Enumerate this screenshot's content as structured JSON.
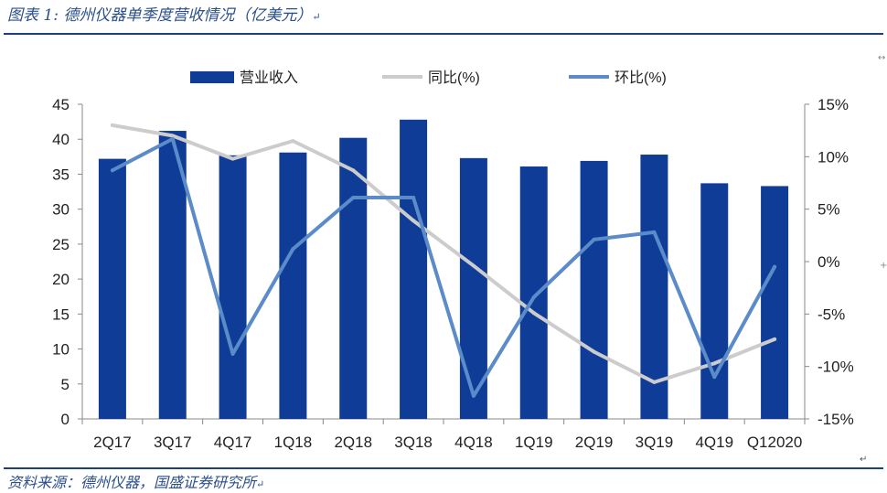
{
  "header": {
    "title": "图表 1:  德州仪器单季度营收情况（亿美元）",
    "title_mark": "↵"
  },
  "footer": {
    "source": "资料来源：德州仪器，国盛证券研究所",
    "source_mark": "↵",
    "corner_mark": "↵"
  },
  "decor": {
    "edge_arrow": "↔",
    "edge_plus": "+"
  },
  "colors": {
    "bar": "#0e3c96",
    "yoy_line": "#cccccc",
    "qoq_line": "#5b8bc9",
    "rule": "#1f3f7a",
    "text": "#2b4f8c"
  },
  "chart_data": {
    "type": "bar",
    "categories": [
      "2Q17",
      "3Q17",
      "4Q17",
      "1Q18",
      "2Q18",
      "3Q18",
      "4Q18",
      "1Q19",
      "2Q19",
      "3Q19",
      "4Q19",
      "Q12020"
    ],
    "series": [
      {
        "name": "营业收入",
        "type": "bar",
        "axis": "left",
        "values": [
          37.2,
          41.2,
          37.7,
          38.1,
          40.2,
          42.8,
          37.3,
          36.1,
          36.9,
          37.8,
          33.7,
          33.3
        ]
      },
      {
        "name": "同比(%)",
        "type": "line",
        "axis": "right",
        "values": [
          13.0,
          12.0,
          9.8,
          11.5,
          8.7,
          3.9,
          -0.4,
          -4.9,
          -8.6,
          -11.5,
          -9.7,
          -7.4
        ]
      },
      {
        "name": "环比(%)",
        "type": "line",
        "axis": "right",
        "values": [
          8.7,
          11.7,
          -8.8,
          1.2,
          6.1,
          6.1,
          -12.8,
          -3.4,
          2.1,
          2.8,
          -11.0,
          -0.5
        ]
      }
    ],
    "left_axis": {
      "min": 0,
      "max": 45,
      "ticks": [
        "0",
        "5",
        "10",
        "15",
        "20",
        "25",
        "30",
        "35",
        "40",
        "45"
      ]
    },
    "right_axis": {
      "min": -15,
      "max": 15,
      "ticks": [
        "-15%",
        "-10%",
        "-5%",
        "0%",
        "5%",
        "10%",
        "15%"
      ]
    },
    "legend": [
      "营业收入",
      "同比(%)",
      "环比(%)"
    ],
    "legend_position": "top-center",
    "grid": false,
    "title": "",
    "xlabel": "",
    "ylabel": ""
  }
}
